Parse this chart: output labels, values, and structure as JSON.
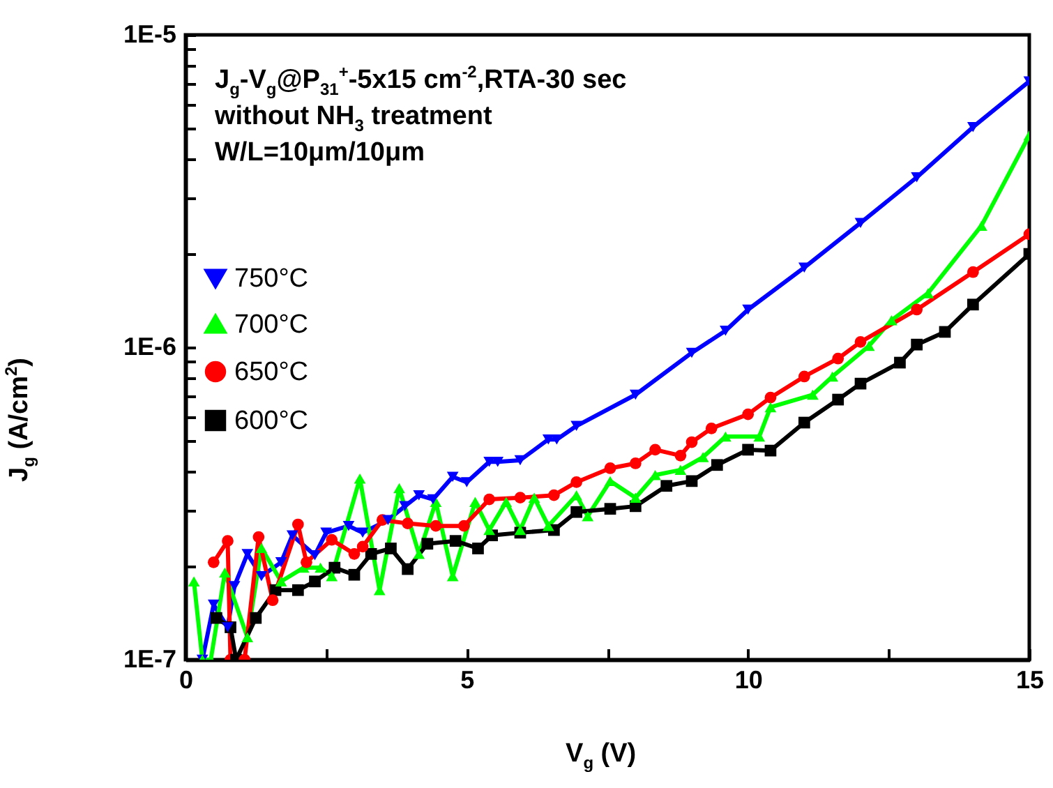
{
  "chart_data": {
    "type": "line",
    "title": "J$_{g}$-V$_{g}$@P$_{31}$$^{+}$-5x15 cm$^{-2}$,RTA-30 sec",
    "annotations": [
      "without NH$_{3}$ treatment",
      "W/L=10μm/10μm"
    ],
    "xlabel": "V$_{g}$ (V)",
    "ylabel": "J$_{g}$ (A/cm$^{2}$)",
    "log": "y",
    "grid": false,
    "legend": "left",
    "xlim": [
      0,
      15
    ],
    "xticks": [
      0,
      {
        "value": 2.5,
        "label": null
      },
      5,
      {
        "value": 7.5,
        "label": null
      },
      10,
      {
        "value": 12.5,
        "label": null
      },
      15
    ],
    "ylim": [
      1e-07,
      1e-05
    ],
    "yticks": [
      {
        "value": 1e-07,
        "label": "1E-7"
      },
      {
        "value": 2e-07,
        "label": null
      },
      {
        "value": 3e-07,
        "label": null
      },
      {
        "value": 4e-07,
        "label": null
      },
      {
        "value": 5e-07,
        "label": null
      },
      {
        "value": 6e-07,
        "label": null
      },
      {
        "value": 7e-07,
        "label": null
      },
      {
        "value": 8e-07,
        "label": null
      },
      {
        "value": 9e-07,
        "label": null
      },
      {
        "value": 1e-06,
        "label": "1E-6"
      },
      {
        "value": 2e-06,
        "label": null
      },
      {
        "value": 3e-06,
        "label": null
      },
      {
        "value": 4e-06,
        "label": null
      },
      {
        "value": 5e-06,
        "label": null
      },
      {
        "value": 6e-06,
        "label": null
      },
      {
        "value": 7e-06,
        "label": null
      },
      {
        "value": 8e-06,
        "label": null
      },
      {
        "value": 9e-06,
        "label": null
      },
      {
        "value": 1e-05,
        "label": "1E-5"
      }
    ],
    "series": [
      {
        "name": "750°C",
        "color": "#0000ff",
        "marker": "triangle-down",
        "x": [
          0.3,
          0.5,
          0.75,
          0.87,
          1.1,
          1.35,
          1.7,
          1.9,
          2.3,
          2.5,
          2.9,
          3.15,
          3.6,
          3.9,
          4.15,
          4.4,
          4.75,
          5.0,
          5.4,
          5.55,
          5.95,
          6.45,
          6.6,
          6.95,
          8.0,
          9.0,
          9.6,
          10.0,
          11.0,
          12.0,
          13.0,
          14.0,
          15.0
        ],
        "values": [
          1e-07,
          1.5e-07,
          1.27e-07,
          1.72e-07,
          2.18e-07,
          1.85e-07,
          2.05e-07,
          2.5e-07,
          2.16e-07,
          2.55e-07,
          2.68e-07,
          2.55e-07,
          2.8e-07,
          3.1e-07,
          3.36e-07,
          3.26e-07,
          3.85e-07,
          3.7e-07,
          4.3e-07,
          4.3e-07,
          4.35e-07,
          5.07e-07,
          5.07e-07,
          5.6e-07,
          7.05e-07,
          9.6e-07,
          1.13e-06,
          1.32e-06,
          1.8e-06,
          2.5e-06,
          3.5e-06,
          5.07e-06,
          7.1e-06
        ]
      },
      {
        "name": "700°C",
        "color": "#00ff00",
        "marker": "triangle",
        "x": [
          0.15,
          0.3,
          0.45,
          0.7,
          1.1,
          1.35,
          1.7,
          2.1,
          2.4,
          2.6,
          3.1,
          3.45,
          3.8,
          4.15,
          4.45,
          4.75,
          5.15,
          5.4,
          5.7,
          5.95,
          6.2,
          6.45,
          6.95,
          7.15,
          7.55,
          8.0,
          8.35,
          8.8,
          9.2,
          9.6,
          10.2,
          10.4,
          11.15,
          11.5,
          12.15,
          12.55,
          13.2,
          14.15,
          15.0
        ],
        "values": [
          1.78e-07,
          1e-07,
          1e-07,
          1.9e-07,
          1.18e-07,
          2.28e-07,
          1.78e-07,
          1.97e-07,
          1.97e-07,
          1.85e-07,
          3.8e-07,
          1.67e-07,
          3.54e-07,
          2.18e-07,
          3.2e-07,
          1.85e-07,
          3.2e-07,
          2.6e-07,
          3.2e-07,
          2.6e-07,
          3.3e-07,
          2.68e-07,
          3.36e-07,
          2.88e-07,
          3.73e-07,
          3.3e-07,
          3.9e-07,
          4.05e-07,
          4.45e-07,
          5.18e-07,
          5.18e-07,
          6.43e-07,
          7.05e-07,
          8.06e-07,
          1.01e-06,
          1.22e-06,
          1.49e-06,
          2.45e-06,
          4.77e-06
        ]
      },
      {
        "name": "650°C",
        "color": "#ff0000",
        "marker": "circle",
        "x": [
          0.5,
          0.75,
          0.8,
          1.05,
          1.3,
          1.55,
          2.0,
          2.15,
          2.6,
          3.0,
          3.15,
          3.5,
          3.95,
          4.45,
          4.95,
          5.4,
          5.95,
          6.55,
          6.95,
          7.55,
          8.0,
          8.35,
          8.8,
          9.0,
          9.35,
          10.0,
          10.4,
          11.0,
          11.6,
          12.0,
          13.0,
          14.0,
          15.0
        ],
        "values": [
          2.05e-07,
          2.4e-07,
          1e-07,
          1e-07,
          2.47e-07,
          1.55e-07,
          2.71e-07,
          2.05e-07,
          2.42e-07,
          2.18e-07,
          2.3e-07,
          2.8e-07,
          2.73e-07,
          2.68e-07,
          2.68e-07,
          3.26e-07,
          3.3e-07,
          3.36e-07,
          3.7e-07,
          4.1e-07,
          4.25e-07,
          4.7e-07,
          4.5e-07,
          4.97e-07,
          5.5e-07,
          6.1e-07,
          6.9e-07,
          8.06e-07,
          9.2e-07,
          1.04e-06,
          1.32e-06,
          1.74e-06,
          2.3e-06
        ]
      },
      {
        "name": "600°C",
        "color": "#000000",
        "marker": "square",
        "x": [
          0.55,
          0.8,
          0.9,
          1.25,
          1.6,
          2.0,
          2.3,
          2.65,
          3.0,
          3.3,
          3.65,
          3.95,
          4.3,
          4.8,
          5.2,
          5.45,
          5.95,
          6.55,
          6.95,
          7.55,
          8.0,
          8.55,
          9.0,
          9.45,
          10.0,
          10.4,
          11.0,
          11.6,
          12.0,
          12.7,
          13.0,
          13.5,
          14.0,
          15.0
        ],
        "values": [
          1.36e-07,
          1.27e-07,
          1e-07,
          1.36e-07,
          1.67e-07,
          1.67e-07,
          1.78e-07,
          1.97e-07,
          1.87e-07,
          2.18e-07,
          2.27e-07,
          1.95e-07,
          2.35e-07,
          2.4e-07,
          2.27e-07,
          2.5e-07,
          2.55e-07,
          2.6e-07,
          2.97e-07,
          3.04e-07,
          3.1e-07,
          3.6e-07,
          3.73e-07,
          4.2e-07,
          4.7e-07,
          4.67e-07,
          5.74e-07,
          6.8e-07,
          7.65e-07,
          8.93e-07,
          1.02e-06,
          1.12e-06,
          1.37e-06,
          1.99e-06
        ]
      }
    ]
  }
}
